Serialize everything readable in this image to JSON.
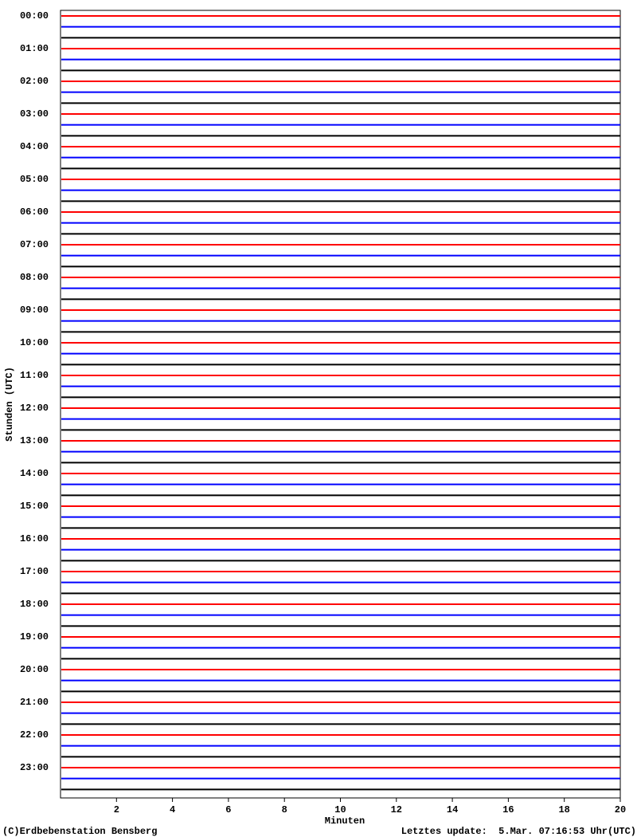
{
  "chart_data": {
    "type": "helicorder",
    "ylabel": "Stunden (UTC)",
    "xlabel": "Minuten",
    "categories": [
      "00:00",
      "01:00",
      "02:00",
      "03:00",
      "04:00",
      "05:00",
      "06:00",
      "07:00",
      "08:00",
      "09:00",
      "10:00",
      "11:00",
      "12:00",
      "13:00",
      "14:00",
      "15:00",
      "16:00",
      "17:00",
      "18:00",
      "19:00",
      "20:00",
      "21:00",
      "22:00",
      "23:00"
    ],
    "xlim": [
      0,
      20
    ],
    "xticks": [
      2,
      4,
      6,
      8,
      10,
      12,
      14,
      16,
      18,
      20
    ],
    "trace_colors": [
      "#ff0000",
      "#0000ff",
      "#000000"
    ],
    "credit": "(C)Erdbebenstation Bensberg",
    "update": "Letztes update:  5.Mar. 07:16:53 Uhr(UTC)"
  }
}
